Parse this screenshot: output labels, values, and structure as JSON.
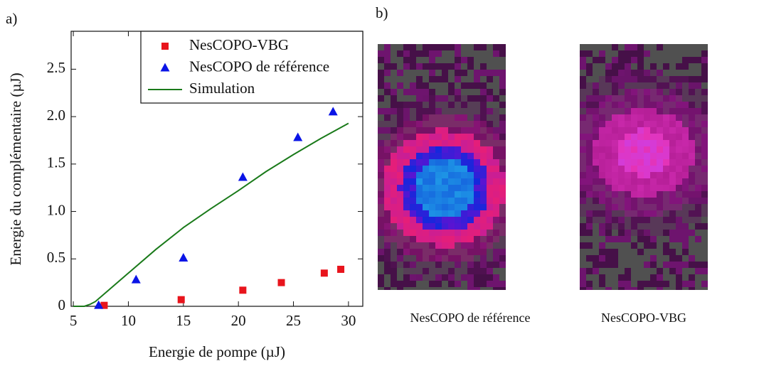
{
  "panel_labels": [
    "a)",
    "b)"
  ],
  "chart_data": {
    "type": "scatter",
    "x_label": "Energie de pompe (µJ)",
    "y_label": "Energie du complémentaire (µJ)",
    "xlim": [
      4.8,
      31.3
    ],
    "ylim": [
      0,
      2.9
    ],
    "xticks": [
      5,
      10,
      15,
      20,
      25,
      30
    ],
    "yticks": [
      0,
      0.5,
      {
        "value": 1,
        "label": "1.0"
      },
      1.5,
      {
        "value": 2,
        "label": "2.0"
      },
      2.5
    ],
    "legend": "upper right",
    "series": [
      {
        "name": "NesCOPO-VBG",
        "color": "#e8141c",
        "mode": "markers",
        "marker": "square",
        "x": [
          7.8,
          14.8,
          20.4,
          23.9,
          27.8,
          29.3
        ],
        "values": [
          0.01,
          0.07,
          0.17,
          0.25,
          0.35,
          0.39
        ]
      },
      {
        "name": "NesCOPO de référence",
        "color": "#0a14e6",
        "mode": "markers",
        "marker": "triangle",
        "x": [
          7.3,
          10.7,
          15.0,
          20.4,
          25.4,
          28.6
        ],
        "values": [
          0.01,
          0.28,
          0.51,
          1.36,
          1.78,
          2.05
        ]
      },
      {
        "name": "Simulation",
        "color": "#1a7a1a",
        "mode": "line",
        "x": [
          5,
          6,
          6.5,
          7,
          8,
          10,
          12.5,
          15,
          17.5,
          20,
          22.5,
          25,
          27.5,
          30
        ],
        "values": [
          0,
          0,
          0.02,
          0.05,
          0.15,
          0.35,
          0.6,
          0.83,
          1.03,
          1.22,
          1.42,
          1.6,
          1.77,
          1.93
        ]
      }
    ]
  },
  "images": [
    {
      "caption": "NesCOPO de référence"
    },
    {
      "caption": "NesCOPO-VBG"
    }
  ]
}
